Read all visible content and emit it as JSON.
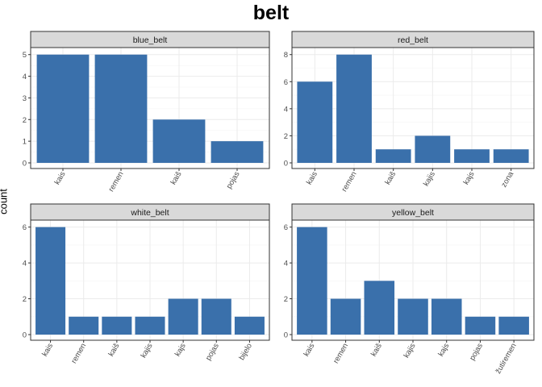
{
  "title": "belt",
  "ylabel": "count",
  "chart_data": [
    {
      "type": "bar",
      "panel": "blue_belt",
      "categories": [
        "kais",
        "remen",
        "kaiš",
        "pojas"
      ],
      "values": [
        5,
        5,
        2,
        1
      ],
      "ylim": [
        0,
        5.25
      ],
      "yticks": [
        0,
        1,
        2,
        3,
        4,
        5
      ],
      "color": "#3a70ab"
    },
    {
      "type": "bar",
      "panel": "red_belt",
      "categories": [
        "kais",
        "remen",
        "kaiš",
        "kajis",
        "kajs",
        "zona"
      ],
      "values": [
        6,
        8,
        1,
        2,
        1,
        1
      ],
      "ylim": [
        0,
        8.4
      ],
      "yticks": [
        0,
        2,
        4,
        6,
        8
      ],
      "color": "#3a70ab"
    },
    {
      "type": "bar",
      "panel": "white_belt",
      "categories": [
        "kais",
        "remen",
        "kaiš",
        "kajis",
        "kajs",
        "pojas",
        "bijelo"
      ],
      "values": [
        6,
        1,
        1,
        1,
        2,
        2,
        1
      ],
      "ylim": [
        0,
        6.3
      ],
      "yticks": [
        0,
        2,
        4,
        6
      ],
      "color": "#3a70ab"
    },
    {
      "type": "bar",
      "panel": "yellow_belt",
      "categories": [
        "kais",
        "remen",
        "kaiš",
        "kajis",
        "kajs",
        "pojas",
        "žutiremen"
      ],
      "values": [
        6,
        2,
        3,
        2,
        2,
        1,
        1
      ],
      "ylim": [
        0,
        6.3
      ],
      "yticks": [
        0,
        2,
        4,
        6
      ],
      "color": "#3a70ab"
    }
  ]
}
